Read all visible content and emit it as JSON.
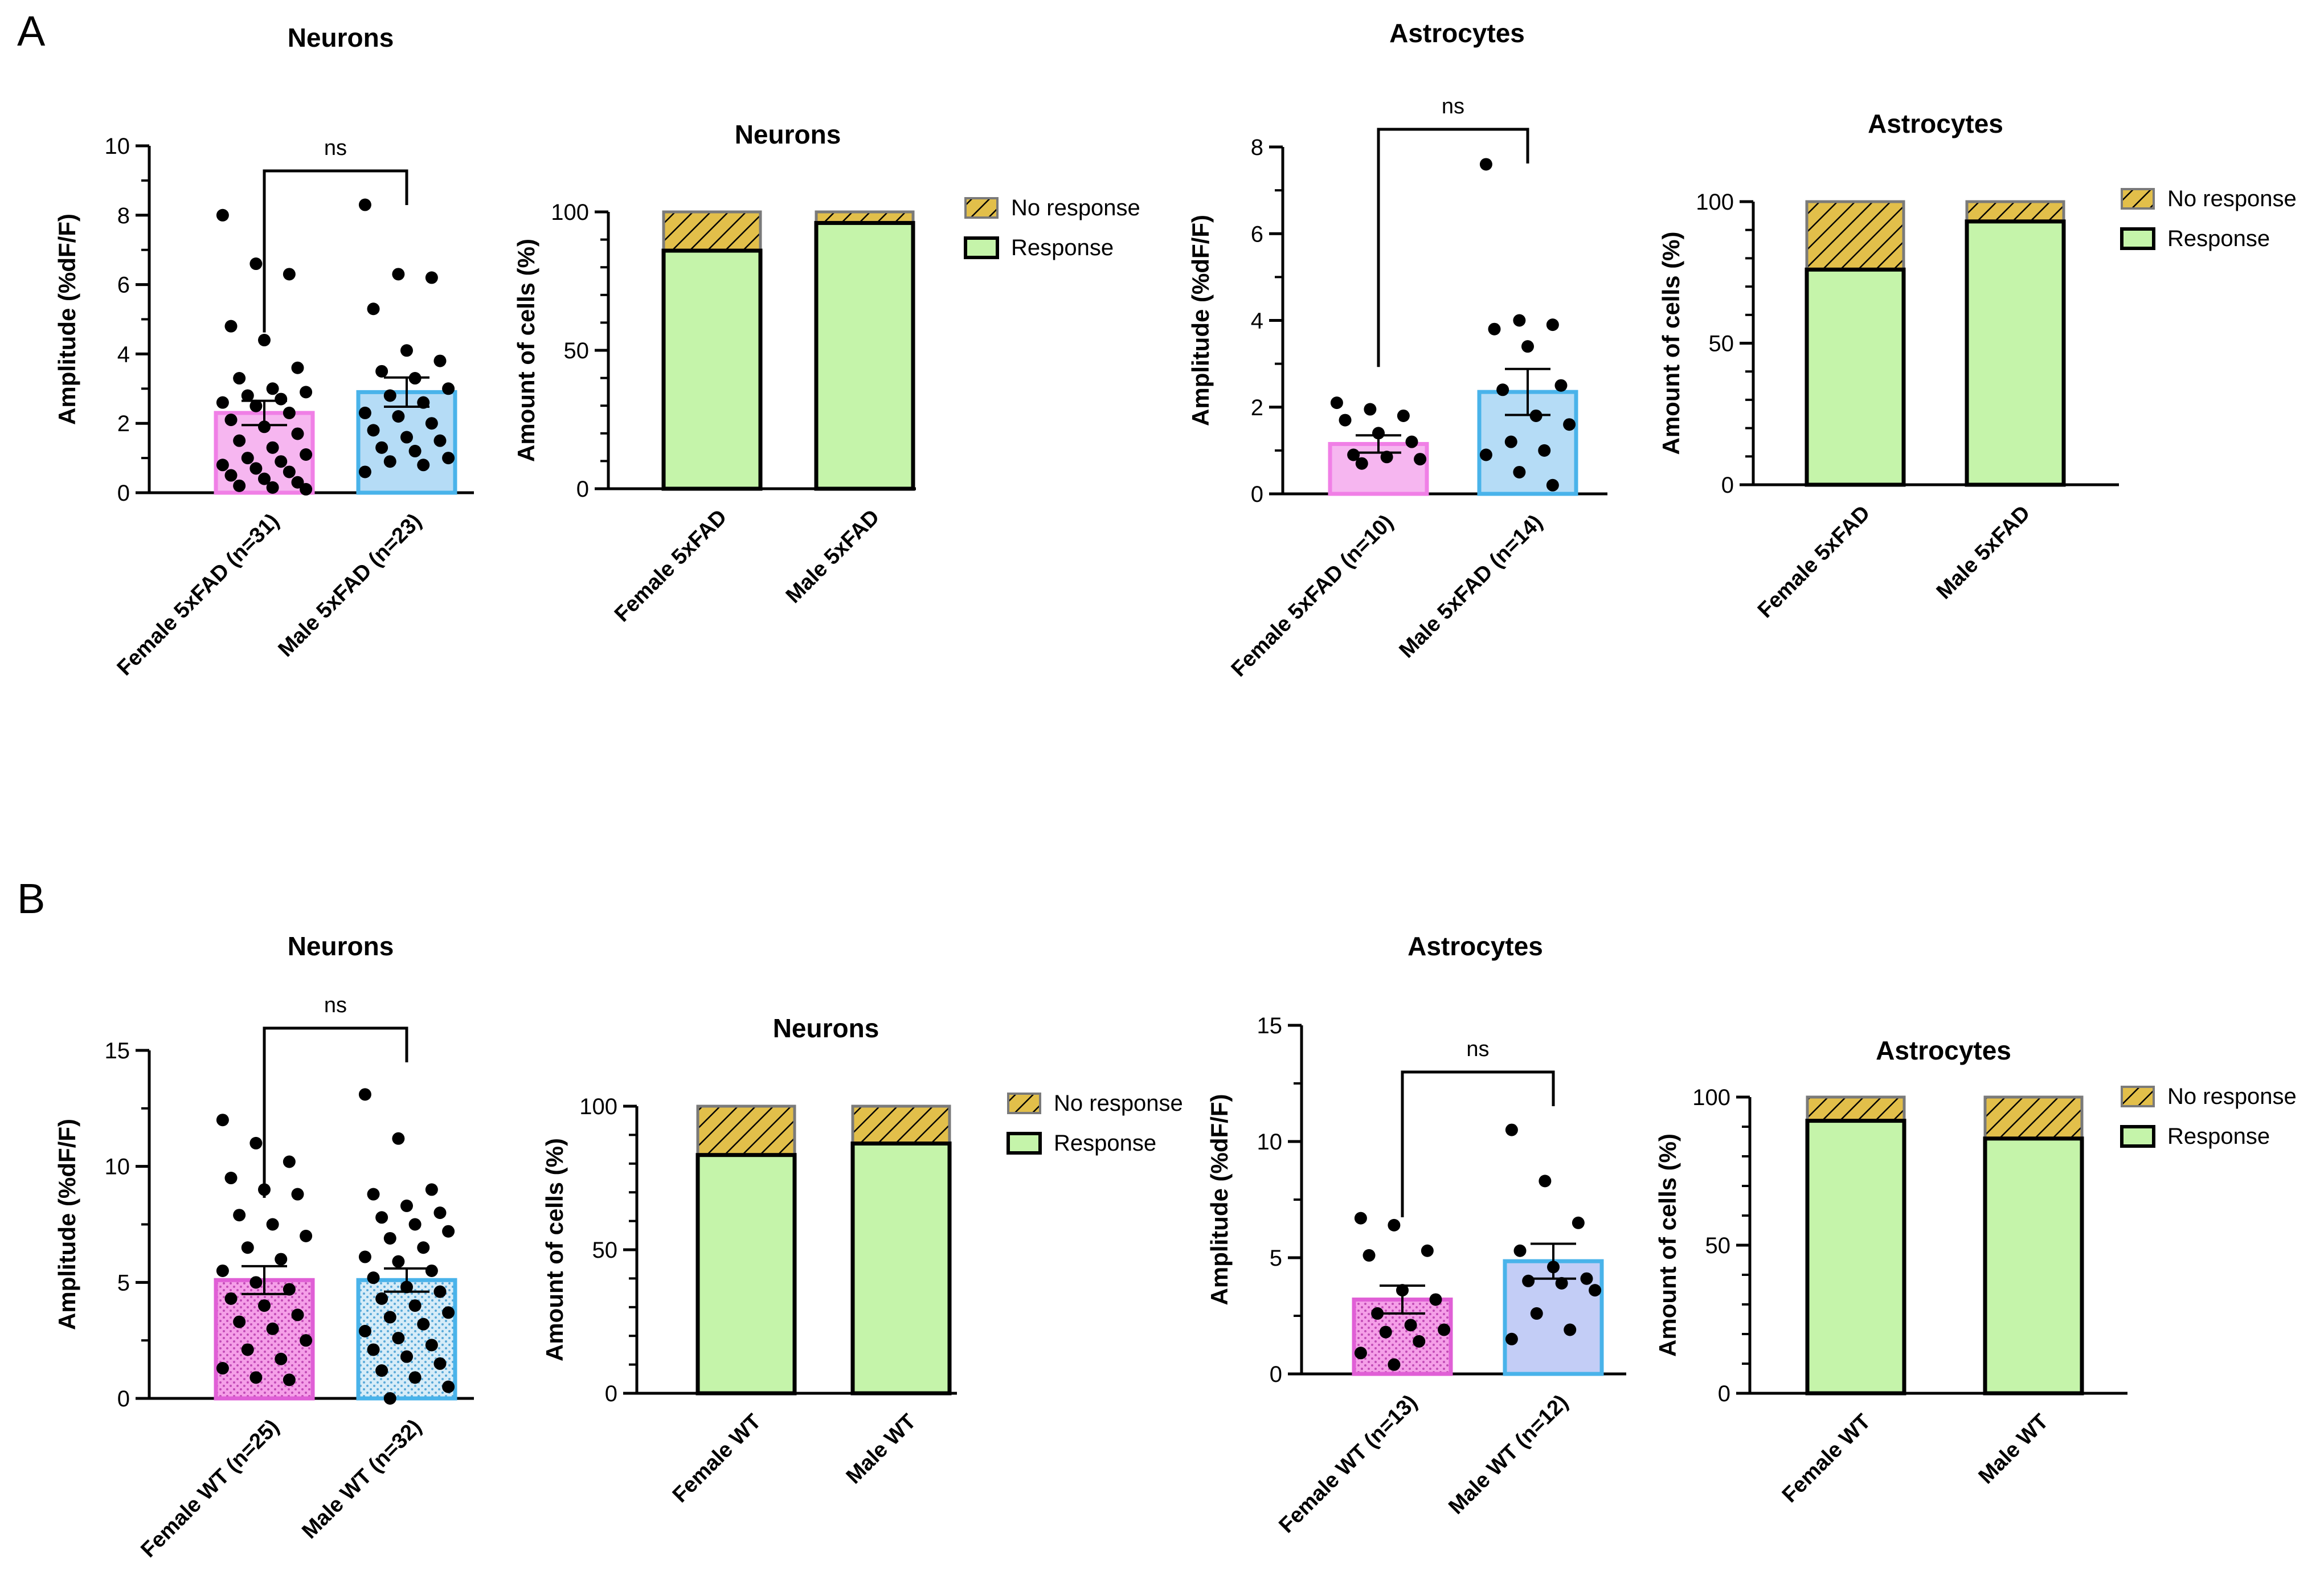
{
  "panels": [
    {
      "label": "A",
      "charts": [
        {
          "type": "bar-scatter",
          "title": "Neurons",
          "ylabel": "Amplitude (%dF/F)",
          "ylim": [
            0,
            10
          ],
          "yticks": [
            0,
            2,
            4,
            6,
            8,
            10
          ],
          "bars": [
            {
              "category": "Female 5xFAD (n=31)",
              "mean": 2.3,
              "sem": 0.35,
              "color": "#f6b6f0",
              "edge": "#f07fe6",
              "pattern": "none",
              "points": [
                8.0,
                6.6,
                6.3,
                4.8,
                4.4,
                3.6,
                3.3,
                3.0,
                2.9,
                2.8,
                2.7,
                2.6,
                2.5,
                2.3,
                2.1,
                1.9,
                1.7,
                1.5,
                1.3,
                1.1,
                1.0,
                0.9,
                0.8,
                0.7,
                0.6,
                0.5,
                0.4,
                0.3,
                0.2,
                0.15,
                0.1
              ]
            },
            {
              "category": "Male 5xFAD (n=23)",
              "mean": 2.9,
              "sem": 0.42,
              "color": "#b5dcf6",
              "edge": "#49b3ea",
              "pattern": "none",
              "points": [
                8.3,
                6.3,
                6.2,
                5.3,
                4.1,
                3.8,
                3.5,
                3.3,
                3.0,
                2.8,
                2.6,
                2.3,
                2.2,
                2.0,
                1.8,
                1.6,
                1.5,
                1.3,
                1.2,
                1.0,
                0.9,
                0.8,
                0.6
              ]
            }
          ],
          "sig": "ns"
        },
        {
          "type": "stacked-bar",
          "title": "Neurons",
          "ylabel": "Amount of cells (%)",
          "ylim": [
            0,
            100
          ],
          "yticks": [
            0,
            50,
            100
          ],
          "categories": [
            "Female 5xFAD",
            "Male 5xFAD"
          ],
          "series": [
            {
              "name": "Response",
              "values": [
                86,
                96
              ]
            },
            {
              "name": "No response",
              "values": [
                14,
                4
              ]
            }
          ],
          "legend": [
            "No response",
            "Response"
          ]
        },
        {
          "type": "bar-scatter",
          "title": "Astrocytes",
          "ylabel": "Amplitude (%dF/F)",
          "ylim": [
            0,
            8
          ],
          "yticks": [
            0,
            2,
            4,
            6,
            8
          ],
          "bars": [
            {
              "category": "Female 5xFAD (n=10)",
              "mean": 1.15,
              "sem": 0.2,
              "color": "#f6b6f0",
              "edge": "#f07fe6",
              "pattern": "none",
              "points": [
                2.1,
                1.95,
                1.8,
                1.7,
                1.4,
                1.2,
                0.9,
                0.85,
                0.8,
                0.7
              ]
            },
            {
              "category": "Male 5xFAD (n=14)",
              "mean": 2.35,
              "sem": 0.53,
              "color": "#b5dcf6",
              "edge": "#49b3ea",
              "pattern": "none",
              "points": [
                7.6,
                4.0,
                3.9,
                3.8,
                3.4,
                2.5,
                2.4,
                1.8,
                1.6,
                1.2,
                1.0,
                0.9,
                0.5,
                0.2
              ]
            }
          ],
          "sig": "ns"
        },
        {
          "type": "stacked-bar",
          "title": "Astrocytes",
          "ylabel": "Amount of cells (%)",
          "ylim": [
            0,
            100
          ],
          "yticks": [
            0,
            50,
            100
          ],
          "categories": [
            "Female 5xFAD",
            "Male 5xFAD"
          ],
          "series": [
            {
              "name": "Response",
              "values": [
                76,
                93
              ]
            },
            {
              "name": "No response",
              "values": [
                24,
                7
              ]
            }
          ],
          "legend": [
            "No response",
            "Response"
          ]
        }
      ]
    },
    {
      "label": "B",
      "charts": [
        {
          "type": "bar-scatter",
          "title": "Neurons",
          "ylabel": "Amplitude (%dF/F)",
          "ylim": [
            0,
            15
          ],
          "yticks": [
            0,
            5,
            10,
            15
          ],
          "bars": [
            {
              "category": "Female WT (n=25)",
              "mean": 5.1,
              "sem": 0.6,
              "color": "#f59fe8",
              "edge": "#e05fd6",
              "pattern": "dots",
              "points": [
                12.0,
                11.0,
                10.2,
                9.5,
                9.0,
                8.8,
                7.9,
                7.5,
                7.0,
                6.5,
                6.0,
                5.5,
                5.0,
                4.7,
                4.3,
                4.0,
                3.6,
                3.3,
                3.0,
                2.5,
                2.1,
                1.7,
                1.3,
                0.9,
                0.8
              ]
            },
            {
              "category": "Male WT (n=32)",
              "mean": 5.1,
              "sem": 0.5,
              "color": "#d6ecf8",
              "edge": "#49b3ea",
              "pattern": "dots",
              "points": [
                13.1,
                11.2,
                9.0,
                8.8,
                8.3,
                8.0,
                7.8,
                7.5,
                7.2,
                6.9,
                6.5,
                6.1,
                5.9,
                5.5,
                5.2,
                4.8,
                4.6,
                4.3,
                4.0,
                3.7,
                3.5,
                3.2,
                2.9,
                2.6,
                2.3,
                2.1,
                1.8,
                1.5,
                1.2,
                0.9,
                0.5,
                0.0
              ]
            }
          ],
          "sig": "ns"
        },
        {
          "type": "stacked-bar",
          "title": "Neurons",
          "ylabel": "Amount of cells (%)",
          "ylim": [
            0,
            100
          ],
          "yticks": [
            0,
            50,
            100
          ],
          "categories": [
            "Female WT",
            "Male WT"
          ],
          "series": [
            {
              "name": "Response",
              "values": [
                83,
                87
              ]
            },
            {
              "name": "No response",
              "values": [
                17,
                13
              ]
            }
          ],
          "legend": [
            "No response",
            "Response"
          ]
        },
        {
          "type": "bar-scatter",
          "title": "Astrocytes",
          "ylabel": "Amplitude (%dF/F)",
          "ylim": [
            0,
            15
          ],
          "yticks": [
            0,
            5,
            10,
            15
          ],
          "bars": [
            {
              "category": "Female WT (n=13)",
              "mean": 3.2,
              "sem": 0.6,
              "color": "#f59fe8",
              "edge": "#e05fd6",
              "pattern": "dots",
              "points": [
                6.7,
                6.4,
                5.3,
                5.1,
                3.6,
                3.2,
                2.6,
                2.1,
                1.9,
                1.8,
                1.4,
                0.9,
                0.4
              ]
            },
            {
              "category": "Male WT (n=12)",
              "mean": 4.85,
              "sem": 0.75,
              "color": "#c3cdf6",
              "edge": "#49b3ea",
              "pattern": "none",
              "points": [
                10.5,
                8.3,
                6.5,
                5.3,
                4.6,
                4.1,
                4.0,
                3.9,
                3.6,
                2.6,
                1.9,
                1.5
              ]
            }
          ],
          "sig": "ns"
        },
        {
          "type": "stacked-bar",
          "title": "Astrocytes",
          "ylabel": "Amount of cells (%)",
          "ylim": [
            0,
            100
          ],
          "yticks": [
            0,
            50,
            100
          ],
          "categories": [
            "Female WT",
            "Male WT"
          ],
          "series": [
            {
              "name": "Response",
              "values": [
                92,
                86
              ]
            },
            {
              "name": "No response",
              "values": [
                8,
                14
              ]
            }
          ],
          "legend": [
            "No response",
            "Response"
          ]
        }
      ]
    }
  ],
  "colors": {
    "response": "#c5f4aa",
    "no_response": "#e2bf4a",
    "axis": "#000000",
    "points": "#000000"
  }
}
